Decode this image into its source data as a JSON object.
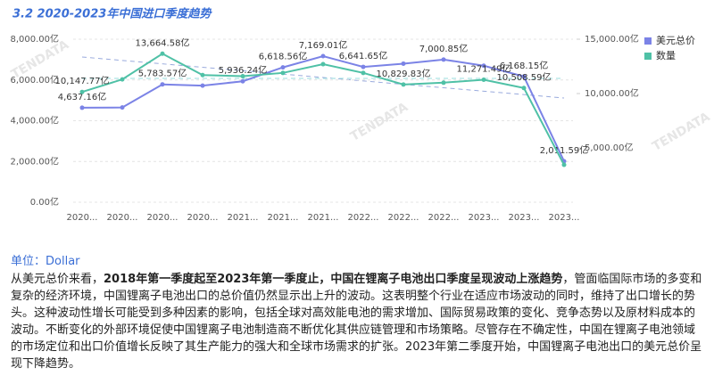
{
  "chart_data": {
    "type": "line",
    "title": "3.2 2020-2023年中国进口季度趋势",
    "watermark": "TENDATA",
    "categories": [
      "2020...",
      "2020...",
      "2020...",
      "2020...",
      "2021...",
      "2021...",
      "2021...",
      "2022...",
      "2022...",
      "2022...",
      "2023...",
      "2023...",
      "2023..."
    ],
    "series": [
      {
        "name": "美元总价",
        "color": "#7b83e6",
        "axis": "y",
        "values": [
          4637.16,
          4650,
          5783.57,
          5720,
          5936.24,
          6618.56,
          7169.01,
          6641.65,
          6800,
          7000.85,
          6700,
          6168.15,
          2011.59
        ],
        "value_labels": [
          "4,637.16亿",
          null,
          "5,783.57亿",
          null,
          "5,936.24亿",
          "6,618.56亿",
          "7,169.01亿",
          "6,641.65亿",
          null,
          "7,000.85亿",
          null,
          "6,168.15亿",
          "2,011.59亿"
        ]
      },
      {
        "name": "数量",
        "color": "#4fc1a6",
        "axis": "y2",
        "values": [
          10147.77,
          11300,
          13664.58,
          11700,
          11600,
          11900,
          12700,
          11900,
          10829.83,
          11000,
          11271.49,
          10508.59,
          3440
        ],
        "value_labels": [
          "10,147.77亿",
          null,
          "13,664.58亿",
          null,
          null,
          null,
          null,
          null,
          "10,829.83亿",
          null,
          "11,271.49亿",
          "10,508.59亿",
          null
        ]
      }
    ],
    "ylim": [
      0,
      8000
    ],
    "yticks": [
      {
        "value": 0,
        "label": "0.00亿"
      },
      {
        "value": 2000,
        "label": "2,000.00亿"
      },
      {
        "value": 4000,
        "label": "4,000.00亿"
      },
      {
        "value": 6000,
        "label": "6,000.00亿"
      },
      {
        "value": 8000,
        "label": "8,000.00亿"
      }
    ],
    "y2lim": [
      0,
      15000
    ],
    "y2ticks": [
      {
        "value": 5000,
        "label": "5,000.00亿"
      },
      {
        "value": 10000,
        "label": "10,000.00亿"
      },
      {
        "value": 15000,
        "label": "15,000.00亿"
      }
    ],
    "grid": true,
    "legend": "top-right"
  },
  "text": {
    "unit": "单位：Dollar",
    "para_start": "从美元总价来看，",
    "para_bold": "2018年第一季度起至2023年第一季度止，中国在锂离子电池出口季度呈现波动上涨趋势",
    "para_end": "，管面临国际市场的多变和复杂的经济环境，中国锂离子电池出口的总价值仍然显示出上升的波动。这表明整个行业在适应市场波动的同时，维持了出口增长的势头。这种波动性增长可能受到多种因素的影响，包括全球对高效能电池的需求增加、国际贸易政策的变化、竞争态势以及原材料成本的波动。不断变化的外部环境促使中国锂离子电池制造商不断优化其供应链管理和市场策略。尽管存在不确定性，中国在锂离子电池领域的市场定位和出口价值增长反映了其生产能力的强大和全球市场需求的扩张。2023年第二季度开始，中国锂离子电池出口的美元总价呈现下降趋势。"
  }
}
